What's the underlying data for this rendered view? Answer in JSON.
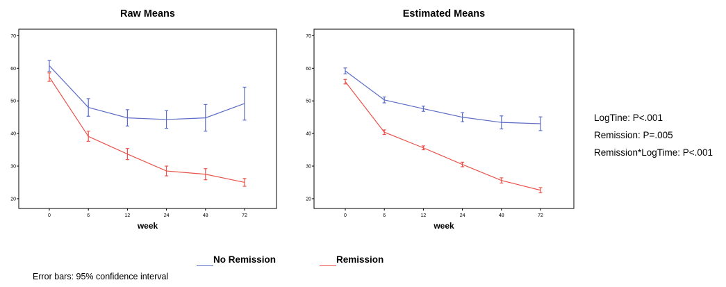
{
  "colors": {
    "no_remission": "#5b6cc4",
    "remission": "#e8524a"
  },
  "chart_data": [
    {
      "type": "line",
      "title": "Raw Means",
      "xlabel": "week",
      "ylabel": "",
      "categories": [
        "0",
        "6",
        "12",
        "24",
        "48",
        "72"
      ],
      "ylim": [
        17,
        72
      ],
      "yticks": [
        20,
        30,
        40,
        50,
        60,
        70
      ],
      "series": [
        {
          "name": "No Remission",
          "color": "#5b6cc4",
          "values": [
            60.8,
            48,
            44.8,
            44.3,
            44.8,
            49.2
          ],
          "ci_low": [
            59.1,
            45.3,
            42.3,
            41.6,
            40.7,
            44.1
          ],
          "ci_high": [
            62.4,
            50.7,
            47.3,
            47.0,
            48.9,
            54.2
          ]
        },
        {
          "name": "Remission",
          "color": "#e8524a",
          "values": [
            57.3,
            39.1,
            33.7,
            28.5,
            27.5,
            25.0
          ],
          "ci_low": [
            56.0,
            37.6,
            32.0,
            27.0,
            25.8,
            23.8
          ],
          "ci_high": [
            58.6,
            40.7,
            35.4,
            30.0,
            29.2,
            26.2
          ]
        }
      ]
    },
    {
      "type": "line",
      "title": "Estimated Means",
      "xlabel": "week",
      "ylabel": "",
      "categories": [
        "0",
        "6",
        "12",
        "24",
        "48",
        "72"
      ],
      "ylim": [
        17,
        72
      ],
      "yticks": [
        20,
        30,
        40,
        50,
        60,
        70
      ],
      "series": [
        {
          "name": "No Remission",
          "color": "#5b6cc4",
          "values": [
            59.2,
            50.3,
            47.6,
            45.0,
            43.4,
            43.0
          ],
          "ci_low": [
            58.3,
            49.4,
            46.8,
            43.6,
            41.4,
            40.9
          ],
          "ci_high": [
            60.1,
            51.2,
            48.4,
            46.4,
            45.4,
            45.1
          ]
        },
        {
          "name": "Remission",
          "color": "#e8524a",
          "values": [
            55.9,
            40.4,
            35.6,
            30.5,
            25.6,
            22.6
          ],
          "ci_low": [
            55.2,
            39.7,
            35.0,
            29.8,
            24.8,
            21.8
          ],
          "ci_high": [
            56.6,
            41.1,
            36.2,
            31.2,
            26.4,
            23.4
          ]
        }
      ]
    }
  ],
  "stats": [
    "LogTine: P<.001",
    "Remission: P=.005",
    "Remission*LogTime: P<.001"
  ],
  "legend": [
    {
      "label": "No Remission",
      "color": "#5b6cc4"
    },
    {
      "label": "Remission",
      "color": "#e8524a"
    }
  ],
  "note": "Error bars: 95% confidence interval"
}
